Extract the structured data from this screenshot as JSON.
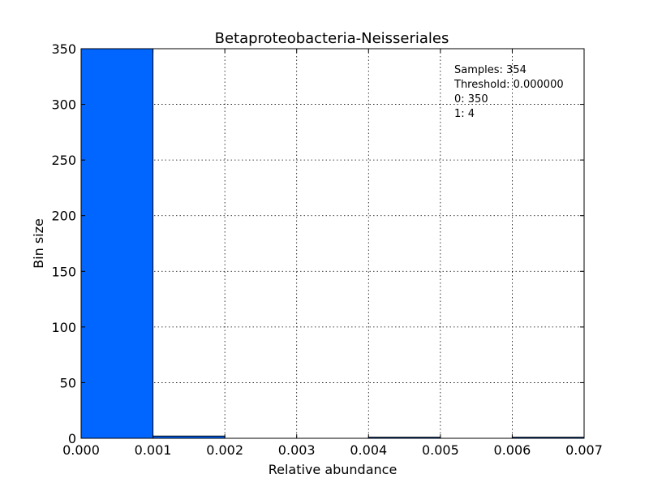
{
  "chart_data": {
    "type": "bar",
    "title": "Betaproteobacteria-Neisseriales",
    "xlabel": "Relative abundance",
    "ylabel": "Bin size",
    "xlim": [
      0.0,
      0.007
    ],
    "ylim": [
      0,
      350
    ],
    "xticks": [
      "0.000",
      "0.001",
      "0.002",
      "0.003",
      "0.004",
      "0.005",
      "0.006",
      "0.007"
    ],
    "yticks": [
      "0",
      "50",
      "100",
      "150",
      "200",
      "250",
      "300",
      "350"
    ],
    "bin_width": 0.001,
    "bins": [
      {
        "x0": 0.0,
        "x1": 0.001,
        "value": 350
      },
      {
        "x0": 0.001,
        "x1": 0.002,
        "value": 2
      },
      {
        "x0": 0.004,
        "x1": 0.005,
        "value": 1
      },
      {
        "x0": 0.006,
        "x1": 0.007,
        "value": 1
      }
    ],
    "bar_color": "#0066ff",
    "grid": true,
    "annotations": [
      "Samples: 354",
      "Threshold: 0.000000",
      "0: 350",
      "1: 4"
    ]
  }
}
